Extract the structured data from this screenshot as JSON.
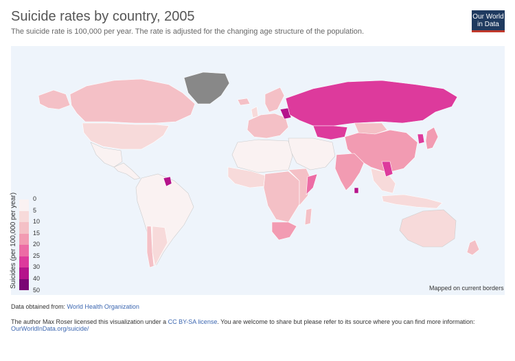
{
  "header": {
    "title": "Suicide rates by country, 2005",
    "subtitle": "The suicide rate is 100,000 per year. The rate is adjusted for the changing age structure of the population."
  },
  "logo": {
    "line1": "Our World",
    "line2": "in Data"
  },
  "legend": {
    "title": "Suicides (per 100,000 per year)",
    "bins": [
      {
        "label": "0",
        "color": "#faf2f2"
      },
      {
        "label": "5",
        "color": "#f7dada"
      },
      {
        "label": "10",
        "color": "#f4c0c6"
      },
      {
        "label": "15",
        "color": "#f29bb2"
      },
      {
        "label": "20",
        "color": "#ec6ca5"
      },
      {
        "label": "25",
        "color": "#dd3a9c"
      },
      {
        "label": "30",
        "color": "#b5138b"
      },
      {
        "label": "40",
        "color": "#7a0674"
      }
    ],
    "max_label": "50",
    "no_data_color": "#888888"
  },
  "map": {
    "note": "Mapped on current borders"
  },
  "footer": {
    "source_prefix": "Data obtained from: ",
    "source_link": "World Health Organization",
    "license_prefix": "The author Max Roser licensed this visualization under a ",
    "license_link": "CC BY-SA license",
    "license_suffix": ". You are welcome to share but please refer to its source where you can find more information:",
    "more_link": "OurWorldInData.org/suicide/"
  },
  "regions": [
    {
      "name": "canada",
      "color": "#f4c0c6"
    },
    {
      "name": "alaska",
      "color": "#f4c0c6"
    },
    {
      "name": "usa",
      "color": "#f7dada"
    },
    {
      "name": "mexico",
      "color": "#faf2f2"
    },
    {
      "name": "central-america",
      "color": "#faf2f2"
    },
    {
      "name": "greenland",
      "color": "#888888"
    },
    {
      "name": "south-america",
      "color": "#faf2f2"
    },
    {
      "name": "guyana",
      "color": "#b5138b"
    },
    {
      "name": "chile",
      "color": "#f4c0c6"
    },
    {
      "name": "argentina",
      "color": "#f7dada"
    },
    {
      "name": "russia",
      "color": "#dd3a9c"
    },
    {
      "name": "europe-west",
      "color": "#f4c0c6"
    },
    {
      "name": "scandinavia",
      "color": "#f4c0c6"
    },
    {
      "name": "baltics",
      "color": "#b5138b"
    },
    {
      "name": "china",
      "color": "#f29bb2"
    },
    {
      "name": "india",
      "color": "#f29bb2"
    },
    {
      "name": "mongolia",
      "color": "#f4c0c6"
    },
    {
      "name": "kazakhstan",
      "color": "#dd3a9c"
    },
    {
      "name": "middle-east",
      "color": "#faf2f2"
    },
    {
      "name": "north-africa",
      "color": "#faf2f2"
    },
    {
      "name": "west-africa",
      "color": "#f7dada"
    },
    {
      "name": "central-africa",
      "color": "#f4c0c6"
    },
    {
      "name": "east-africa",
      "color": "#f4c0c6"
    },
    {
      "name": "somalia",
      "color": "#ec6ca5"
    },
    {
      "name": "south-africa",
      "color": "#f29bb2"
    },
    {
      "name": "southeast-asia",
      "color": "#f7dada"
    },
    {
      "name": "korea",
      "color": "#dd3a9c"
    },
    {
      "name": "japan",
      "color": "#f29bb2"
    },
    {
      "name": "australia",
      "color": "#f7dada"
    },
    {
      "name": "new-zealand",
      "color": "#f4c0c6"
    },
    {
      "name": "indonesia",
      "color": "#f7dada"
    },
    {
      "name": "madagascar",
      "color": "#f4c0c6"
    },
    {
      "name": "iceland",
      "color": "#f4c0c6"
    },
    {
      "name": "uk",
      "color": "#f7dada"
    },
    {
      "name": "sri-lanka",
      "color": "#b5138b"
    },
    {
      "name": "laos-vietnam",
      "color": "#dd3a9c"
    }
  ]
}
